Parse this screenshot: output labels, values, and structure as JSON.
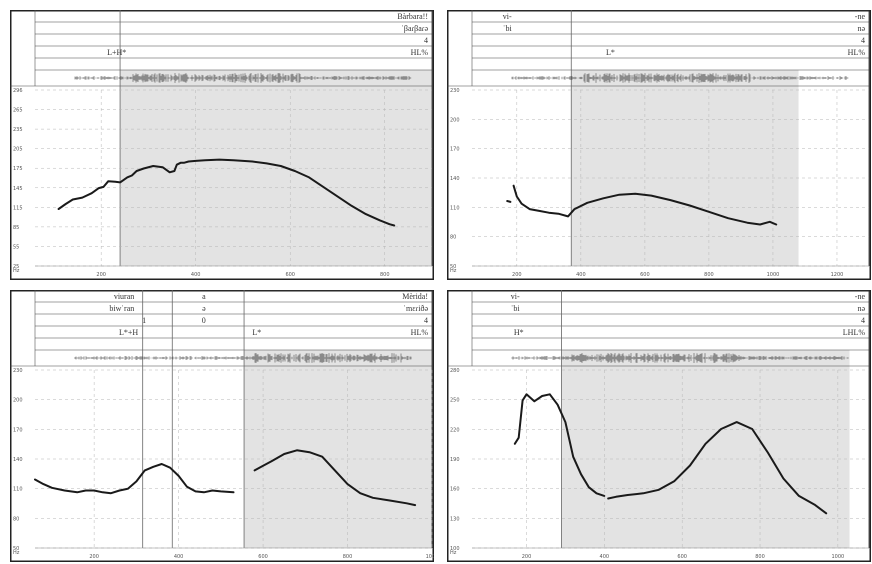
{
  "chart_data": [
    {
      "type": "line",
      "tiers": {
        "ortho": [
          {
            "text": "Bàrbara!!",
            "pos": "end"
          }
        ],
        "ipa": [
          {
            "text": "ˈβaɾβaɾə",
            "pos": "end"
          }
        ],
        "break": [
          {
            "text": "4",
            "pos": "end"
          }
        ],
        "tones": [
          {
            "text": "L+H*",
            "pos": 0.23
          },
          {
            "text": "HL%",
            "pos": "end"
          }
        ]
      },
      "boundaries": [
        240
      ],
      "shade_from": 240,
      "x_ticks": [
        "200",
        "400",
        "600",
        "800"
      ],
      "y_ticks": [
        "296",
        "265",
        "235",
        "205",
        "175",
        "145",
        "115",
        "85",
        "55",
        "25"
      ],
      "y_unit": "Hz",
      "xlim": [
        60,
        900
      ],
      "ylim": [
        20,
        298
      ],
      "series": [
        {
          "x": [
            110,
            125,
            140,
            160,
            180,
            195,
            205,
            215,
            230,
            240,
            255,
            265,
            275,
            290,
            310,
            330,
            345,
            355,
            360,
            368,
            375,
            385,
            400,
            420,
            450,
            480,
            500,
            520,
            550,
            580,
            610,
            640,
            670,
            700,
            730,
            760,
            790,
            810,
            820
          ],
          "y": [
            110,
            118,
            125,
            128,
            135,
            143,
            145,
            154,
            153,
            152,
            160,
            163,
            170,
            174,
            178,
            176,
            168,
            170,
            180,
            183,
            183,
            185,
            186,
            187,
            188,
            187,
            186,
            185,
            182,
            178,
            170,
            160,
            145,
            130,
            115,
            102,
            92,
            86,
            84
          ]
        }
      ]
    },
    {
      "type": "line",
      "tiers": {
        "ortho": [
          {
            "text": "vi-",
            "pos": 0.1
          },
          {
            "text": "-ne",
            "pos": "end"
          }
        ],
        "ipa": [
          {
            "text": "ˈbi",
            "pos": 0.1
          },
          {
            "text": "nə",
            "pos": "end"
          }
        ],
        "break": [
          {
            "text": "4",
            "pos": "end"
          }
        ],
        "tones": [
          {
            "text": "L*",
            "pos": 0.36
          },
          {
            "text": "HL%",
            "pos": "end"
          }
        ]
      },
      "boundaries": [
        370
      ],
      "shade_from": 370,
      "shade_to": 1080,
      "x_ticks": [
        "200",
        "400",
        "600",
        "800",
        "1000",
        "1200"
      ],
      "y_ticks": [
        "230",
        "200",
        "170",
        "140",
        "110",
        "80",
        "50"
      ],
      "y_unit": "Hz",
      "xlim": [
        60,
        1300
      ],
      "ylim": [
        45,
        240
      ],
      "series": [
        {
          "x": [
            170,
            180
          ],
          "y": [
            117,
            116
          ]
        },
        {
          "x": [
            190,
            200,
            215,
            240,
            270,
            300,
            330,
            360,
            380,
            420,
            470,
            520,
            570,
            620,
            680,
            740,
            800,
            860,
            920,
            960,
            990,
            1010
          ],
          "y": [
            134,
            122,
            114,
            108,
            106,
            104,
            103,
            100,
            108,
            115,
            120,
            124,
            125,
            123,
            118,
            112,
            105,
            98,
            93,
            91,
            94,
            91
          ]
        }
      ]
    },
    {
      "type": "line",
      "tiers": {
        "ortho": [
          {
            "text": "viuran",
            "pos": 0.25
          },
          {
            "text": "a",
            "pos": 0.43
          },
          {
            "text": "Mèrida!",
            "pos": "end"
          }
        ],
        "ipa": [
          {
            "text": "biwˈran",
            "pos": 0.25
          },
          {
            "text": "ə",
            "pos": 0.43
          },
          {
            "text": "ˈmɛɾiðə",
            "pos": "end"
          }
        ],
        "break": [
          {
            "text": "1",
            "pos": 0.28
          },
          {
            "text": "0",
            "pos": 0.43
          },
          {
            "text": "4",
            "pos": "end"
          }
        ],
        "tones": [
          {
            "text": "L*+H",
            "pos": 0.26
          },
          {
            "text": "L*",
            "pos": 0.57
          },
          {
            "text": "HL%",
            "pos": "end"
          }
        ]
      },
      "boundaries": [
        315,
        385,
        555
      ],
      "shade_from": 555,
      "x_ticks": [
        "200",
        "400",
        "600",
        "800",
        "1000"
      ],
      "y_ticks": [
        "230",
        "200",
        "170",
        "140",
        "110",
        "80",
        "50"
      ],
      "y_unit": "Hz",
      "xlim": [
        60,
        1000
      ],
      "ylim": [
        45,
        240
      ],
      "series": [
        {
          "x": [
            60,
            80,
            100,
            130,
            160,
            180,
            200,
            220,
            240,
            260,
            280,
            300,
            320,
            340,
            360,
            380,
            400,
            420,
            440,
            460,
            480,
            500,
            530
          ],
          "y": [
            120,
            115,
            111,
            108,
            106,
            108,
            108,
            106,
            105,
            108,
            110,
            118,
            130,
            134,
            137,
            133,
            124,
            112,
            107,
            106,
            108,
            107,
            106
          ]
        },
        {
          "x": [
            580,
            600,
            620,
            650,
            680,
            710,
            740,
            770,
            800,
            830,
            860,
            900,
            940,
            960
          ],
          "y": [
            130,
            135,
            140,
            148,
            152,
            150,
            145,
            130,
            115,
            105,
            100,
            97,
            94,
            92
          ]
        }
      ]
    },
    {
      "type": "line",
      "tiers": {
        "ortho": [
          {
            "text": "vi-",
            "pos": 0.12
          },
          {
            "text": "-ne",
            "pos": "end"
          }
        ],
        "ipa": [
          {
            "text": "ˈbi",
            "pos": 0.12
          },
          {
            "text": "nə",
            "pos": "end"
          }
        ],
        "break": [
          {
            "text": "4",
            "pos": "end"
          }
        ],
        "tones": [
          {
            "text": "H*",
            "pos": 0.13
          },
          {
            "text": "LHL%",
            "pos": "end"
          }
        ]
      },
      "boundaries": [
        290
      ],
      "shade_from": 290,
      "shade_to": 1030,
      "x_ticks": [
        "200",
        "400",
        "600",
        "800",
        "1000"
      ],
      "y_ticks": [
        "280",
        "250",
        "220",
        "190",
        "160",
        "130",
        "100"
      ],
      "y_unit": "Hz",
      "xlim": [
        60,
        1080
      ],
      "ylim": [
        95,
        300
      ],
      "series": [
        {
          "x": [
            170,
            180,
            190,
            200,
            210,
            220,
            240,
            260,
            280,
            300,
            320,
            340,
            360,
            380,
            400
          ],
          "y": [
            215,
            222,
            265,
            272,
            268,
            264,
            270,
            272,
            260,
            240,
            200,
            180,
            165,
            158,
            155
          ]
        },
        {
          "x": [
            410,
            430,
            460,
            500,
            540,
            580,
            620,
            660,
            700,
            740,
            780,
            820,
            860,
            900,
            940,
            970
          ],
          "y": [
            152,
            154,
            156,
            158,
            162,
            172,
            190,
            215,
            232,
            240,
            232,
            205,
            175,
            155,
            145,
            135
          ]
        }
      ]
    }
  ]
}
